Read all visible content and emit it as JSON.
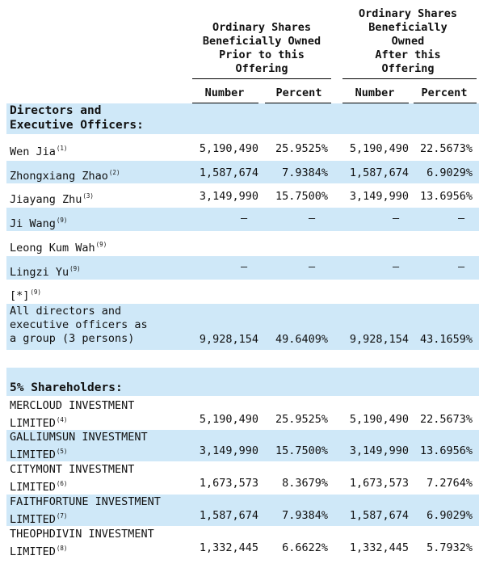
{
  "header": {
    "prior": "Ordinary Shares\nBeneficially Owned\nPrior to this\nOffering",
    "after": "Ordinary Shares\nBeneficially\nOwned\nAfter this\nOffering",
    "col_number": "Number",
    "col_percent": "Percent"
  },
  "sections": {
    "directors": "Directors and\n Executive Officers:",
    "shareholders": "5% Shareholders:"
  },
  "rows": [
    {
      "name": "Wen Jia",
      "fn": "(1)",
      "n1": "5,190,490",
      "p1": "25.9525%",
      "n2": "5,190,490",
      "p2": "22.5673%"
    },
    {
      "name": "Zhongxiang Zhao",
      "fn": "(2)",
      "n1": "1,587,674",
      "p1": "7.9384%",
      "n2": "1,587,674",
      "p2": "6.9029%"
    },
    {
      "name": "Jiayang Zhu",
      "fn": "(3)",
      "n1": "3,149,990",
      "p1": "15.7500%",
      "n2": "3,149,990",
      "p2": "13.6956%"
    },
    {
      "name": "Ji Wang",
      "fn": "(9)",
      "n1": "—",
      "p1": "—",
      "n2": "—",
      "p2": "—"
    },
    {
      "name": "Leong Kum Wah",
      "fn": "(9)",
      "n1": "",
      "p1": "",
      "n2": "",
      "p2": ""
    },
    {
      "name": "Lingzi Yu",
      "fn": "(9)",
      "n1": "—",
      "p1": "—",
      "n2": "—",
      "p2": "—"
    },
    {
      "name": "[*]",
      "fn": "(9)",
      "n1": "",
      "p1": "",
      "n2": "",
      "p2": ""
    },
    {
      "name": "All directors and\n  executive officers as\n  a group (3  persons)",
      "fn": "",
      "n1": "9,928,154",
      "p1": "49.6409%",
      "n2": "9,928,154",
      "p2": "43.1659%"
    },
    {
      "name": "MERCLOUD INVESTMENT\n  LIMITED",
      "fn": "(4)",
      "n1": "5,190,490",
      "p1": "25.9525%",
      "n2": "5,190,490",
      "p2": "22.5673%"
    },
    {
      "name": "GALLIUMSUN INVESTMENT\n  LIMITED",
      "fn": "(5)",
      "n1": "3,149,990",
      "p1": "15.7500%",
      "n2": "3,149,990",
      "p2": "13.6956%"
    },
    {
      "name": "CITYMONT INVESTMENT\n  LIMITED",
      "fn": "(6)",
      "n1": "1,673,573",
      "p1": "8.3679%",
      "n2": "1,673,573",
      "p2": "7.2764%"
    },
    {
      "name": "FAITHFORTUNE INVESTMENT\n  LIMITED",
      "fn": "(7)",
      "n1": "1,587,674",
      "p1": "7.9384%",
      "n2": "1,587,674",
      "p2": "6.9029%"
    },
    {
      "name": "THEOPHDIVIN INVESTMENT\n  LIMITED",
      "fn": "(8)",
      "n1": "1,332,445",
      "p1": "6.6622%",
      "n2": "1,332,445",
      "p2": "5.7932%"
    }
  ]
}
